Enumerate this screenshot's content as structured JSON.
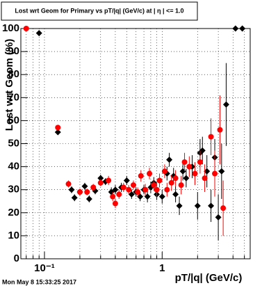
{
  "chart_data": {
    "type": "scatter",
    "title": "Lost wrt Geom for Primary vs pT/|q| (GeV/c) at | η | <= 1.0",
    "x_label": "pT/|q| (GeV/c)",
    "y_label": "Lost wrt Geom (%)",
    "footer": "Mon May  8 15:33:25 2017",
    "xscale": "log",
    "xlim": [
      0.063,
      5.6
    ],
    "ylim": [
      0,
      100
    ],
    "xticks": [
      {
        "value": 0.1,
        "label": "10⁻¹"
      },
      {
        "value": 1,
        "label": "1"
      }
    ],
    "xminorticks": [
      0.07,
      0.08,
      0.09,
      0.2,
      0.3,
      0.4,
      0.5,
      0.6,
      0.7,
      0.8,
      0.9,
      2,
      3,
      4,
      5
    ],
    "yticks": [
      0,
      10,
      20,
      30,
      40,
      50,
      60,
      70,
      80,
      90,
      100
    ],
    "grid": true,
    "series": [
      {
        "color": "#000000",
        "marker": "diamond",
        "x": [
          0.09,
          0.13,
          0.17,
          0.18,
          0.2,
          0.22,
          0.24,
          0.27,
          0.3,
          0.33,
          0.37,
          0.4,
          0.45,
          0.5,
          0.55,
          0.6,
          0.65,
          0.7,
          0.75,
          0.8,
          0.85,
          0.9,
          1.0,
          1.1,
          1.15,
          1.25,
          1.3,
          1.4,
          1.5,
          1.6,
          1.8,
          2.0,
          2.1,
          2.2,
          2.4,
          2.6,
          2.8,
          3.0,
          3.2,
          3.5,
          4.2,
          4.8
        ],
        "values": [
          98,
          55,
          30,
          26.5,
          29,
          31.5,
          26,
          29.5,
          35,
          33.5,
          29,
          30,
          31,
          34,
          28,
          29,
          27,
          30,
          27,
          31,
          33,
          28,
          27,
          37,
          43,
          36,
          28,
          23,
          38,
          35,
          40,
          23,
          46,
          47,
          38,
          23,
          44,
          18,
          38,
          67,
          100,
          100
        ],
        "errors": [
          1,
          1,
          1.5,
          1.5,
          1.5,
          1.5,
          1.5,
          1.5,
          1.5,
          1.5,
          2,
          2,
          2,
          2,
          2,
          2,
          2,
          2,
          2.5,
          2.5,
          2.5,
          2.5,
          3,
          3,
          3,
          3.5,
          3.5,
          4,
          4,
          4,
          5,
          6,
          6,
          6,
          7,
          7,
          8,
          10,
          12,
          18,
          0,
          0
        ]
      },
      {
        "color": "#ff0000",
        "marker": "circle",
        "x": [
          0.07,
          0.13,
          0.16,
          0.2,
          0.23,
          0.26,
          0.3,
          0.35,
          0.38,
          0.4,
          0.43,
          0.47,
          0.52,
          0.57,
          0.62,
          0.66,
          0.72,
          0.78,
          0.85,
          0.9,
          0.95,
          1.05,
          1.1,
          1.2,
          1.3,
          1.45,
          1.55,
          1.7,
          1.9,
          2.1,
          2.3,
          2.6,
          2.8,
          3.1,
          3.3
        ],
        "values": [
          100,
          57,
          32.5,
          29,
          29,
          31,
          33,
          34,
          27,
          24,
          28,
          31,
          30,
          32,
          29,
          36,
          30,
          37,
          32,
          30,
          34,
          38,
          30,
          33,
          35,
          32,
          42,
          40,
          37,
          42,
          35,
          53,
          37,
          56,
          22
        ],
        "errors": [
          0,
          1,
          1.5,
          1.5,
          1.5,
          1.5,
          1.5,
          2,
          2,
          2,
          2,
          2,
          2,
          2,
          2,
          2.5,
          2.5,
          2.5,
          2.5,
          3,
          3,
          3,
          3,
          3.5,
          3.5,
          4,
          4,
          4.5,
          5,
          5,
          6,
          8,
          10,
          15,
          12
        ]
      }
    ]
  }
}
